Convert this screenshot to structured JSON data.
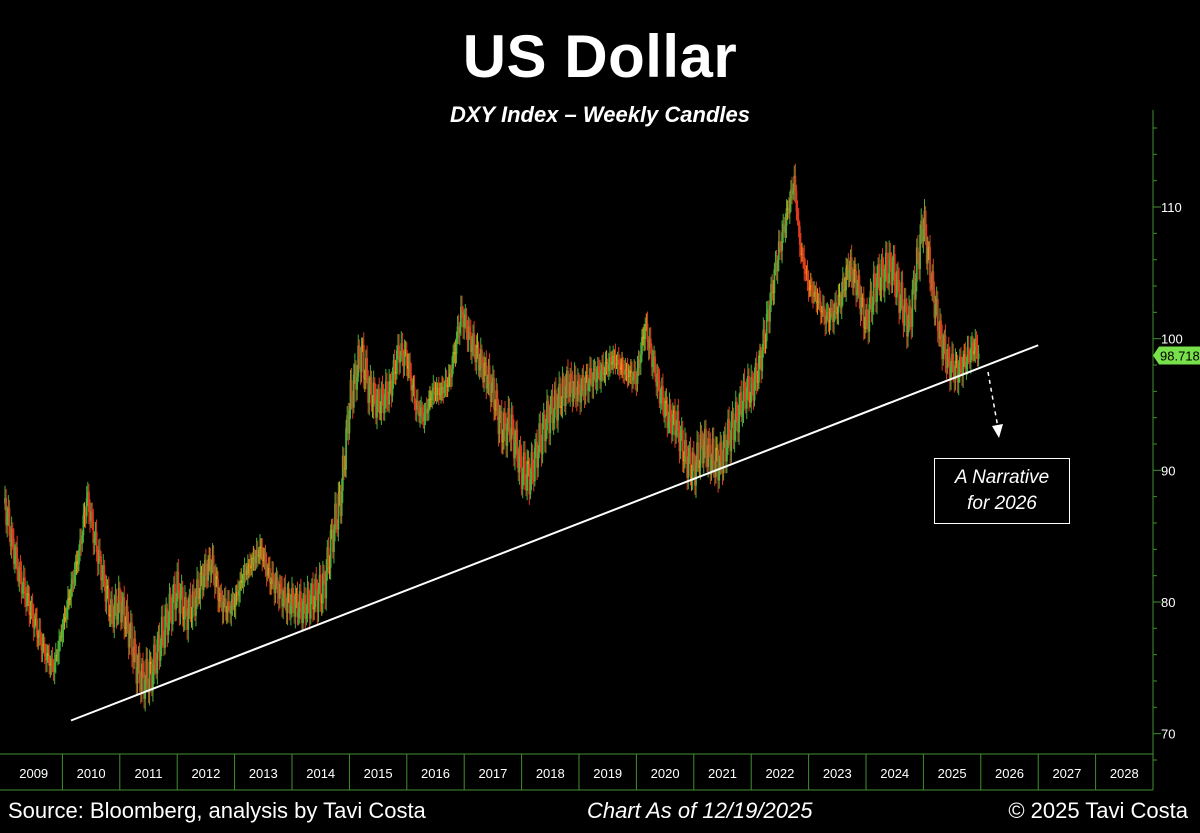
{
  "header": {
    "title": "US Dollar",
    "subtitle": "DXY Index – Weekly Candles"
  },
  "footer": {
    "source": "Source: Bloomberg, analysis by Tavi Costa",
    "asof": "Chart As of 12/19/2025",
    "copyright": "© 2025 Tavi Costa"
  },
  "annotation": {
    "line1": "A Narrative",
    "line2": "for 2026"
  },
  "colors": {
    "background": "#000000",
    "axis": "#3f8f2f",
    "up_candle": "#4caf3a",
    "down_candle": "#e03a1e",
    "mixed_candle": "#e0a21a",
    "trendline": "#ffffff",
    "last_price_badge": "#78e04a"
  },
  "chart_data": {
    "type": "candlestick",
    "title": "US Dollar",
    "subtitle": "DXY Index – Weekly Candles",
    "x_categories": [
      "2009",
      "2010",
      "2011",
      "2012",
      "2013",
      "2014",
      "2015",
      "2016",
      "2017",
      "2018",
      "2019",
      "2020",
      "2021",
      "2022",
      "2023",
      "2024",
      "2025",
      "2026",
      "2027",
      "2028"
    ],
    "y_ticks": [
      70,
      80,
      90,
      100,
      110
    ],
    "ylim": [
      68,
      116
    ],
    "xlim": [
      2009.0,
      2029.0
    ],
    "last_price": "98.718",
    "grid": false,
    "series": [
      {
        "x": [
          2009.0,
          2009.1,
          2009.25,
          2009.4,
          2009.55,
          2009.7,
          2009.85,
          2010.0,
          2010.15,
          2010.3,
          2010.43,
          2010.55,
          2010.7,
          2010.85,
          2011.0,
          2011.15,
          2011.3,
          2011.4,
          2011.55,
          2011.7,
          2011.85,
          2012.0,
          2012.15,
          2012.3,
          2012.45,
          2012.6,
          2012.75,
          2012.9,
          2013.0,
          2013.15,
          2013.3,
          2013.45,
          2013.6,
          2013.75,
          2013.9,
          2014.0,
          2014.2,
          2014.4,
          2014.55,
          2014.7,
          2014.85,
          2015.0,
          2015.2,
          2015.35,
          2015.5,
          2015.7,
          2015.85,
          2016.0,
          2016.15,
          2016.3,
          2016.45,
          2016.6,
          2016.75,
          2016.95,
          2017.1,
          2017.3,
          2017.5,
          2017.65,
          2017.8,
          2018.0,
          2018.15,
          2018.3,
          2018.45,
          2018.6,
          2018.8,
          2019.0,
          2019.2,
          2019.4,
          2019.6,
          2019.8,
          2020.0,
          2020.15,
          2020.25,
          2020.4,
          2020.55,
          2020.7,
          2020.85,
          2021.0,
          2021.15,
          2021.3,
          2021.45,
          2021.6,
          2021.75,
          2021.9,
          2022.0,
          2022.15,
          2022.3,
          2022.45,
          2022.6,
          2022.75,
          2022.85,
          2023.0,
          2023.15,
          2023.3,
          2023.45,
          2023.55,
          2023.7,
          2023.85,
          2024.0,
          2024.15,
          2024.3,
          2024.45,
          2024.6,
          2024.75,
          2024.9,
          2025.0,
          2025.15,
          2025.3,
          2025.45,
          2025.6,
          2025.75,
          2025.9,
          2025.97
        ],
        "close": [
          87.5,
          85.0,
          82.0,
          80.0,
          78.0,
          76.0,
          75.0,
          78.0,
          81.0,
          84.0,
          88.0,
          85.0,
          82.0,
          79.0,
          80.0,
          78.0,
          75.0,
          74.0,
          74.5,
          77.0,
          79.0,
          81.0,
          79.0,
          80.0,
          82.0,
          83.0,
          80.0,
          79.5,
          80.0,
          82.0,
          83.0,
          84.0,
          82.0,
          81.0,
          80.0,
          80.0,
          79.5,
          80.5,
          81.0,
          85.0,
          88.0,
          95.0,
          99.0,
          96.0,
          95.0,
          96.0,
          99.0,
          98.5,
          95.0,
          94.0,
          96.0,
          96.0,
          97.0,
          102.0,
          100.0,
          98.0,
          96.0,
          93.0,
          93.5,
          90.0,
          89.5,
          92.0,
          94.0,
          95.0,
          96.5,
          96.0,
          97.0,
          97.5,
          98.5,
          97.5,
          97.0,
          101.0,
          99.0,
          96.0,
          94.0,
          93.5,
          91.0,
          90.0,
          92.0,
          91.0,
          90.5,
          92.5,
          94.0,
          96.0,
          96.0,
          98.0,
          102.0,
          106.0,
          109.0,
          112.0,
          107.0,
          104.0,
          103.0,
          101.5,
          102.0,
          103.0,
          105.5,
          104.0,
          101.0,
          104.0,
          105.0,
          105.5,
          103.0,
          101.0,
          106.0,
          109.0,
          104.0,
          100.0,
          98.0,
          97.5,
          98.5,
          99.5,
          98.7
        ],
        "trendline": {
          "x": [
            2010.15,
            2027.0
          ],
          "y": [
            71.0,
            99.5
          ]
        },
        "annotation_text": [
          "A Narrative",
          "for 2026"
        ]
      }
    ]
  }
}
